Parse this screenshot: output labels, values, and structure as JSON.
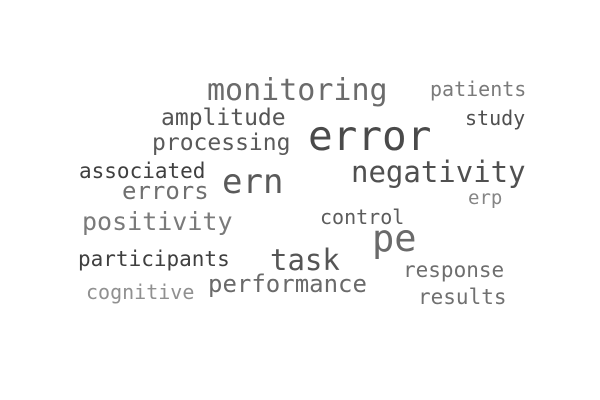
{
  "words": [
    {
      "text": "error",
      "color": "#4a4a4a"
    },
    {
      "text": "monitoring",
      "color": "#6b6b6b"
    },
    {
      "text": "pe",
      "color": "#6a6a6a"
    },
    {
      "text": "ern",
      "color": "#5a5a5a"
    },
    {
      "text": "negativity",
      "color": "#505050"
    },
    {
      "text": "task",
      "color": "#555555"
    },
    {
      "text": "performance",
      "color": "#6a6a6a"
    },
    {
      "text": "positivity",
      "color": "#7a7a7a"
    },
    {
      "text": "amplitude",
      "color": "#555555"
    },
    {
      "text": "processing",
      "color": "#5a5a5a"
    },
    {
      "text": "errors",
      "color": "#707070"
    },
    {
      "text": "associated",
      "color": "#3f3f3f"
    },
    {
      "text": "participants",
      "color": "#3f3f3f"
    },
    {
      "text": "response",
      "color": "#6e6e6e"
    },
    {
      "text": "results",
      "color": "#707070"
    },
    {
      "text": "control",
      "color": "#5c5c5c"
    },
    {
      "text": "study",
      "color": "#4f4f4f"
    },
    {
      "text": "patients",
      "color": "#7a7a7a"
    },
    {
      "text": "erp",
      "color": "#858585"
    },
    {
      "text": "cognitive",
      "color": "#909090"
    }
  ]
}
